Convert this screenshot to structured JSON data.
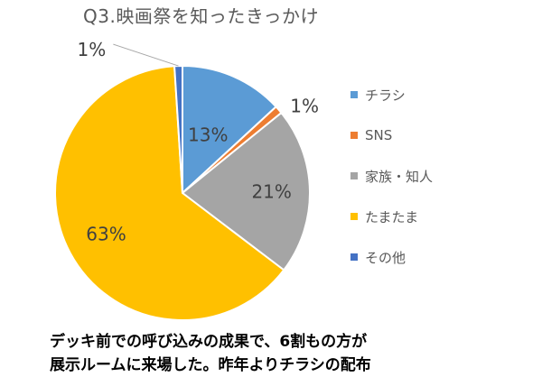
{
  "chart_data": {
    "type": "pie",
    "title": "Q3.映画祭を知ったきっかけ",
    "categories": [
      "チラシ",
      "SNS",
      "家族・知人",
      "たまたま",
      "その他"
    ],
    "values": [
      13,
      1,
      21,
      63,
      1
    ],
    "data_labels": [
      "13%",
      "1%",
      "21%",
      "63%",
      "1%"
    ],
    "colors": [
      "#5B9BD5",
      "#ED7D31",
      "#A5A5A5",
      "#FFC000",
      "#4472C4"
    ],
    "legend_position": "right",
    "start_angle": "top",
    "direction": "clockwise"
  },
  "caption": {
    "line1": "デッキ前での呼び込みの成果で、6割もの方が",
    "line2": "展示ルームに来場した。昨年よりチラシの配布"
  }
}
